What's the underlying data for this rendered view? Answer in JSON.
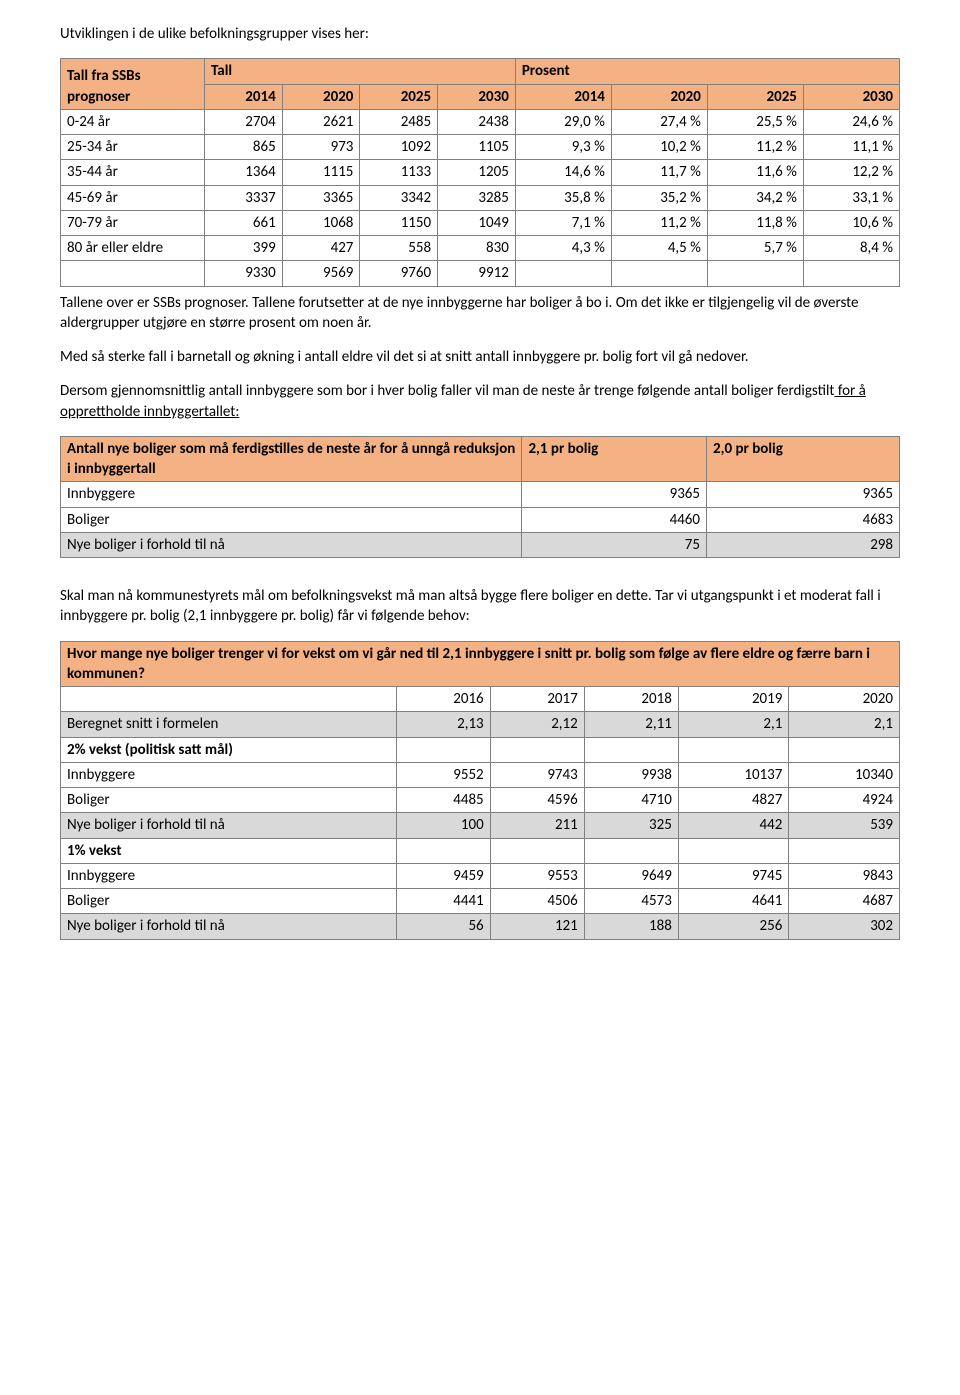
{
  "intro": "Utviklingen i de ulike befolkningsgrupper vises her:",
  "table1": {
    "h1a": "Tall fra SSBs prognoser",
    "h1b": "Tall",
    "h1c": "Prosent",
    "years": [
      "2014",
      "2020",
      "2025",
      "2030",
      "2014",
      "2020",
      "2025",
      "2030"
    ],
    "rows": [
      {
        "label": "0-24 år",
        "v": [
          "2704",
          "2621",
          "2485",
          "2438",
          "29,0 %",
          "27,4 %",
          "25,5 %",
          "24,6 %"
        ]
      },
      {
        "label": "25-34 år",
        "v": [
          "865",
          "973",
          "1092",
          "1105",
          "9,3 %",
          "10,2 %",
          "11,2 %",
          "11,1 %"
        ]
      },
      {
        "label": "35-44 år",
        "v": [
          "1364",
          "1115",
          "1133",
          "1205",
          "14,6 %",
          "11,7 %",
          "11,6 %",
          "12,2 %"
        ]
      },
      {
        "label": "45-69 år",
        "v": [
          "3337",
          "3365",
          "3342",
          "3285",
          "35,8 %",
          "35,2 %",
          "34,2 %",
          "33,1 %"
        ]
      },
      {
        "label": "70-79 år",
        "v": [
          "661",
          "1068",
          "1150",
          "1049",
          "7,1 %",
          "11,2 %",
          "11,8 %",
          "10,6 %"
        ]
      },
      {
        "label": "80 år eller eldre",
        "v": [
          "399",
          "427",
          "558",
          "830",
          "4,3 %",
          "4,5 %",
          "5,7 %",
          "8,4 %"
        ]
      },
      {
        "label": "",
        "v": [
          "9330",
          "9569",
          "9760",
          "9912",
          "",
          "",
          "",
          ""
        ]
      }
    ]
  },
  "para1a": "Tallene over er SSBs prognoser. Tallene forutsetter at de nye innbyggerne har boliger å bo i. Om det ikke er tilgjengelig vil de øverste aldergrupper utgjøre en større prosent om noen år.",
  "para2": "Med så sterke fall i barnetall og økning i antall eldre vil det si at snitt antall innbyggere pr. bolig fort vil gå nedover.",
  "para3a": "Dersom gjennomsnittlig antall innbyggere som bor i hver bolig faller vil man de neste år trenge følgende antall boliger ferdigstilt",
  "para3b": " for å opprettholde innbyggertallet:",
  "table2": {
    "h1": "Antall nye boliger som må ferdigstilles de neste år for å unngå reduksjon i innbyggertall",
    "h2": "2,1 pr bolig",
    "h3": "2,0 pr bolig",
    "rows": [
      {
        "label": "Innbyggere",
        "a": "9365",
        "b": "9365",
        "gray": false
      },
      {
        "label": "Boliger",
        "a": "4460",
        "b": "4683",
        "gray": false
      },
      {
        "label": "Nye boliger i forhold til nå",
        "a": "75",
        "b": "298",
        "gray": true
      }
    ]
  },
  "para4": "Skal man nå kommunestyrets mål om befolkningsvekst må man altså bygge flere boliger en dette. Tar vi utgangspunkt i et moderat fall i innbyggere pr. bolig (2,1 innbyggere pr. bolig) får vi følgende behov:",
  "table3": {
    "title": "Hvor mange nye boliger trenger vi for vekst om vi går ned til 2,1 innbyggere i snitt pr. bolig som følge av flere eldre og færre barn i kommunen?",
    "years": [
      "2016",
      "2017",
      "2018",
      "2019",
      "2020"
    ],
    "rows": [
      {
        "label": "Beregnet snitt i formelen",
        "v": [
          "2,13",
          "2,12",
          "2,11",
          "2,1",
          "2,1"
        ],
        "gray": true,
        "bold": false
      },
      {
        "label": "2% vekst (politisk satt mål)",
        "v": [
          "",
          "",
          "",
          "",
          ""
        ],
        "gray": false,
        "bold": true
      },
      {
        "label": "Innbyggere",
        "v": [
          "9552",
          "9743",
          "9938",
          "10137",
          "10340"
        ],
        "gray": false,
        "bold": false
      },
      {
        "label": "Boliger",
        "v": [
          "4485",
          "4596",
          "4710",
          "4827",
          "4924"
        ],
        "gray": false,
        "bold": false
      },
      {
        "label": "Nye boliger i forhold til nå",
        "v": [
          "100",
          "211",
          "325",
          "442",
          "539"
        ],
        "gray": true,
        "bold": false
      },
      {
        "label": "1% vekst",
        "v": [
          "",
          "",
          "",
          "",
          ""
        ],
        "gray": false,
        "bold": true
      },
      {
        "label": "Innbyggere",
        "v": [
          "9459",
          "9553",
          "9649",
          "9745",
          "9843"
        ],
        "gray": false,
        "bold": false
      },
      {
        "label": "Boliger",
        "v": [
          "4441",
          "4506",
          "4573",
          "4641",
          "4687"
        ],
        "gray": false,
        "bold": false
      },
      {
        "label": "Nye boliger i forhold til nå",
        "v": [
          "56",
          "121",
          "188",
          "256",
          "302"
        ],
        "gray": true,
        "bold": false
      }
    ]
  },
  "colors": {
    "header_bg": "#f4b183",
    "gray_bg": "#d9d9d9",
    "border": "#808080",
    "text": "#000000",
    "page_bg": "#ffffff"
  }
}
